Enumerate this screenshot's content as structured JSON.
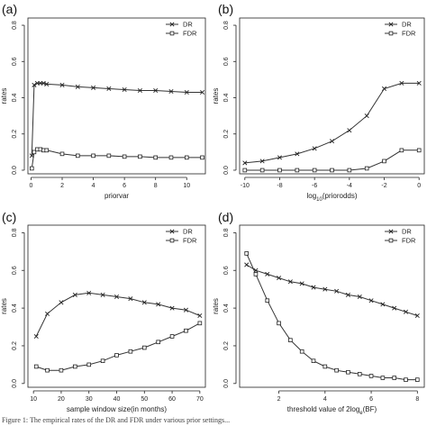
{
  "caption": "Figure 1: The empirical rates of the DR and FDR under various prior settings...",
  "chart_data": [
    {
      "panel": "(a)",
      "type": "line",
      "xlabel": "priorvar",
      "ylabel": "rates",
      "xlim": [
        -0.2,
        11.2
      ],
      "ylim": [
        -0.02,
        0.84
      ],
      "xticks": [
        0,
        2,
        4,
        6,
        8,
        10
      ],
      "yticks": [
        0.0,
        0.2,
        0.4,
        0.6,
        0.8
      ],
      "legend_position": "top-right",
      "series": [
        {
          "name": "DR",
          "marker": "x",
          "x": [
            0.05,
            0.2,
            0.4,
            0.6,
            0.8,
            1.0,
            2,
            3,
            4,
            5,
            6,
            7,
            8,
            9,
            10,
            11
          ],
          "values": [
            0.08,
            0.47,
            0.48,
            0.48,
            0.48,
            0.475,
            0.47,
            0.46,
            0.455,
            0.45,
            0.445,
            0.44,
            0.44,
            0.435,
            0.43,
            0.43
          ]
        },
        {
          "name": "FDR",
          "marker": "square",
          "x": [
            0.05,
            0.2,
            0.4,
            0.6,
            0.8,
            1.0,
            2,
            3,
            4,
            5,
            6,
            7,
            8,
            9,
            10,
            11
          ],
          "values": [
            0.01,
            0.1,
            0.115,
            0.115,
            0.11,
            0.11,
            0.09,
            0.08,
            0.08,
            0.08,
            0.075,
            0.075,
            0.07,
            0.07,
            0.07,
            0.07
          ]
        }
      ]
    },
    {
      "panel": "(b)",
      "type": "line",
      "xlabel": "log10(priorodds)",
      "ylabel": "rates",
      "xlim": [
        -10.3,
        0.3
      ],
      "ylim": [
        -0.02,
        0.84
      ],
      "xticks": [
        -10,
        -8,
        -6,
        -4,
        -2,
        0
      ],
      "yticks": [
        0.0,
        0.2,
        0.4,
        0.6,
        0.8
      ],
      "legend_position": "top-right",
      "series": [
        {
          "name": "DR",
          "marker": "x",
          "x": [
            -10,
            -9,
            -8,
            -7,
            -6,
            -5,
            -4,
            -3,
            -2,
            -1,
            0
          ],
          "values": [
            0.04,
            0.05,
            0.07,
            0.09,
            0.12,
            0.16,
            0.22,
            0.3,
            0.45,
            0.48,
            0.48
          ]
        },
        {
          "name": "FDR",
          "marker": "square",
          "x": [
            -10,
            -9,
            -8,
            -7,
            -6,
            -5,
            -4,
            -3,
            -2,
            -1,
            0
          ],
          "values": [
            0.0,
            0.0,
            0.0,
            0.0,
            0.0,
            0.0,
            0.0,
            0.01,
            0.05,
            0.11,
            0.11
          ]
        }
      ]
    },
    {
      "panel": "(c)",
      "type": "line",
      "xlabel": "sample window size(in months)",
      "ylabel": "rates",
      "xlim": [
        8,
        72
      ],
      "ylim": [
        -0.02,
        0.84
      ],
      "xticks": [
        10,
        20,
        30,
        40,
        50,
        60,
        70
      ],
      "yticks": [
        0.0,
        0.2,
        0.4,
        0.6,
        0.8
      ],
      "legend_position": "top-right",
      "series": [
        {
          "name": "DR",
          "marker": "x",
          "x": [
            11,
            15,
            20,
            25,
            30,
            35,
            40,
            45,
            50,
            55,
            60,
            65,
            70
          ],
          "values": [
            0.25,
            0.37,
            0.43,
            0.47,
            0.48,
            0.47,
            0.46,
            0.45,
            0.43,
            0.42,
            0.4,
            0.39,
            0.36
          ]
        },
        {
          "name": "FDR",
          "marker": "square",
          "x": [
            11,
            15,
            20,
            25,
            30,
            35,
            40,
            45,
            50,
            55,
            60,
            65,
            70
          ],
          "values": [
            0.09,
            0.07,
            0.07,
            0.09,
            0.1,
            0.12,
            0.15,
            0.17,
            0.19,
            0.22,
            0.25,
            0.28,
            0.32
          ]
        }
      ]
    },
    {
      "panel": "(d)",
      "type": "line",
      "xlabel": "threshold value of 2loge(BF)",
      "ylabel": "rates",
      "xlim": [
        0.3,
        8.3
      ],
      "ylim": [
        -0.02,
        0.84
      ],
      "xticks": [
        2,
        4,
        6,
        8
      ],
      "yticks": [
        0.0,
        0.2,
        0.4,
        0.6,
        0.8
      ],
      "legend_position": "top-right",
      "series": [
        {
          "name": "DR",
          "marker": "x",
          "x": [
            0.6,
            1,
            1.5,
            2,
            2.5,
            3,
            3.5,
            4,
            4.5,
            5,
            5.5,
            6,
            6.5,
            7,
            7.5,
            8
          ],
          "values": [
            0.63,
            0.6,
            0.58,
            0.56,
            0.54,
            0.53,
            0.51,
            0.5,
            0.49,
            0.47,
            0.46,
            0.44,
            0.42,
            0.4,
            0.38,
            0.36
          ]
        },
        {
          "name": "FDR",
          "marker": "square",
          "x": [
            0.6,
            1,
            1.5,
            2,
            2.5,
            3,
            3.5,
            4,
            4.5,
            5,
            5.5,
            6,
            6.5,
            7,
            7.5,
            8
          ],
          "values": [
            0.69,
            0.58,
            0.44,
            0.32,
            0.23,
            0.17,
            0.12,
            0.09,
            0.07,
            0.06,
            0.05,
            0.04,
            0.03,
            0.03,
            0.02,
            0.02
          ]
        }
      ]
    }
  ]
}
